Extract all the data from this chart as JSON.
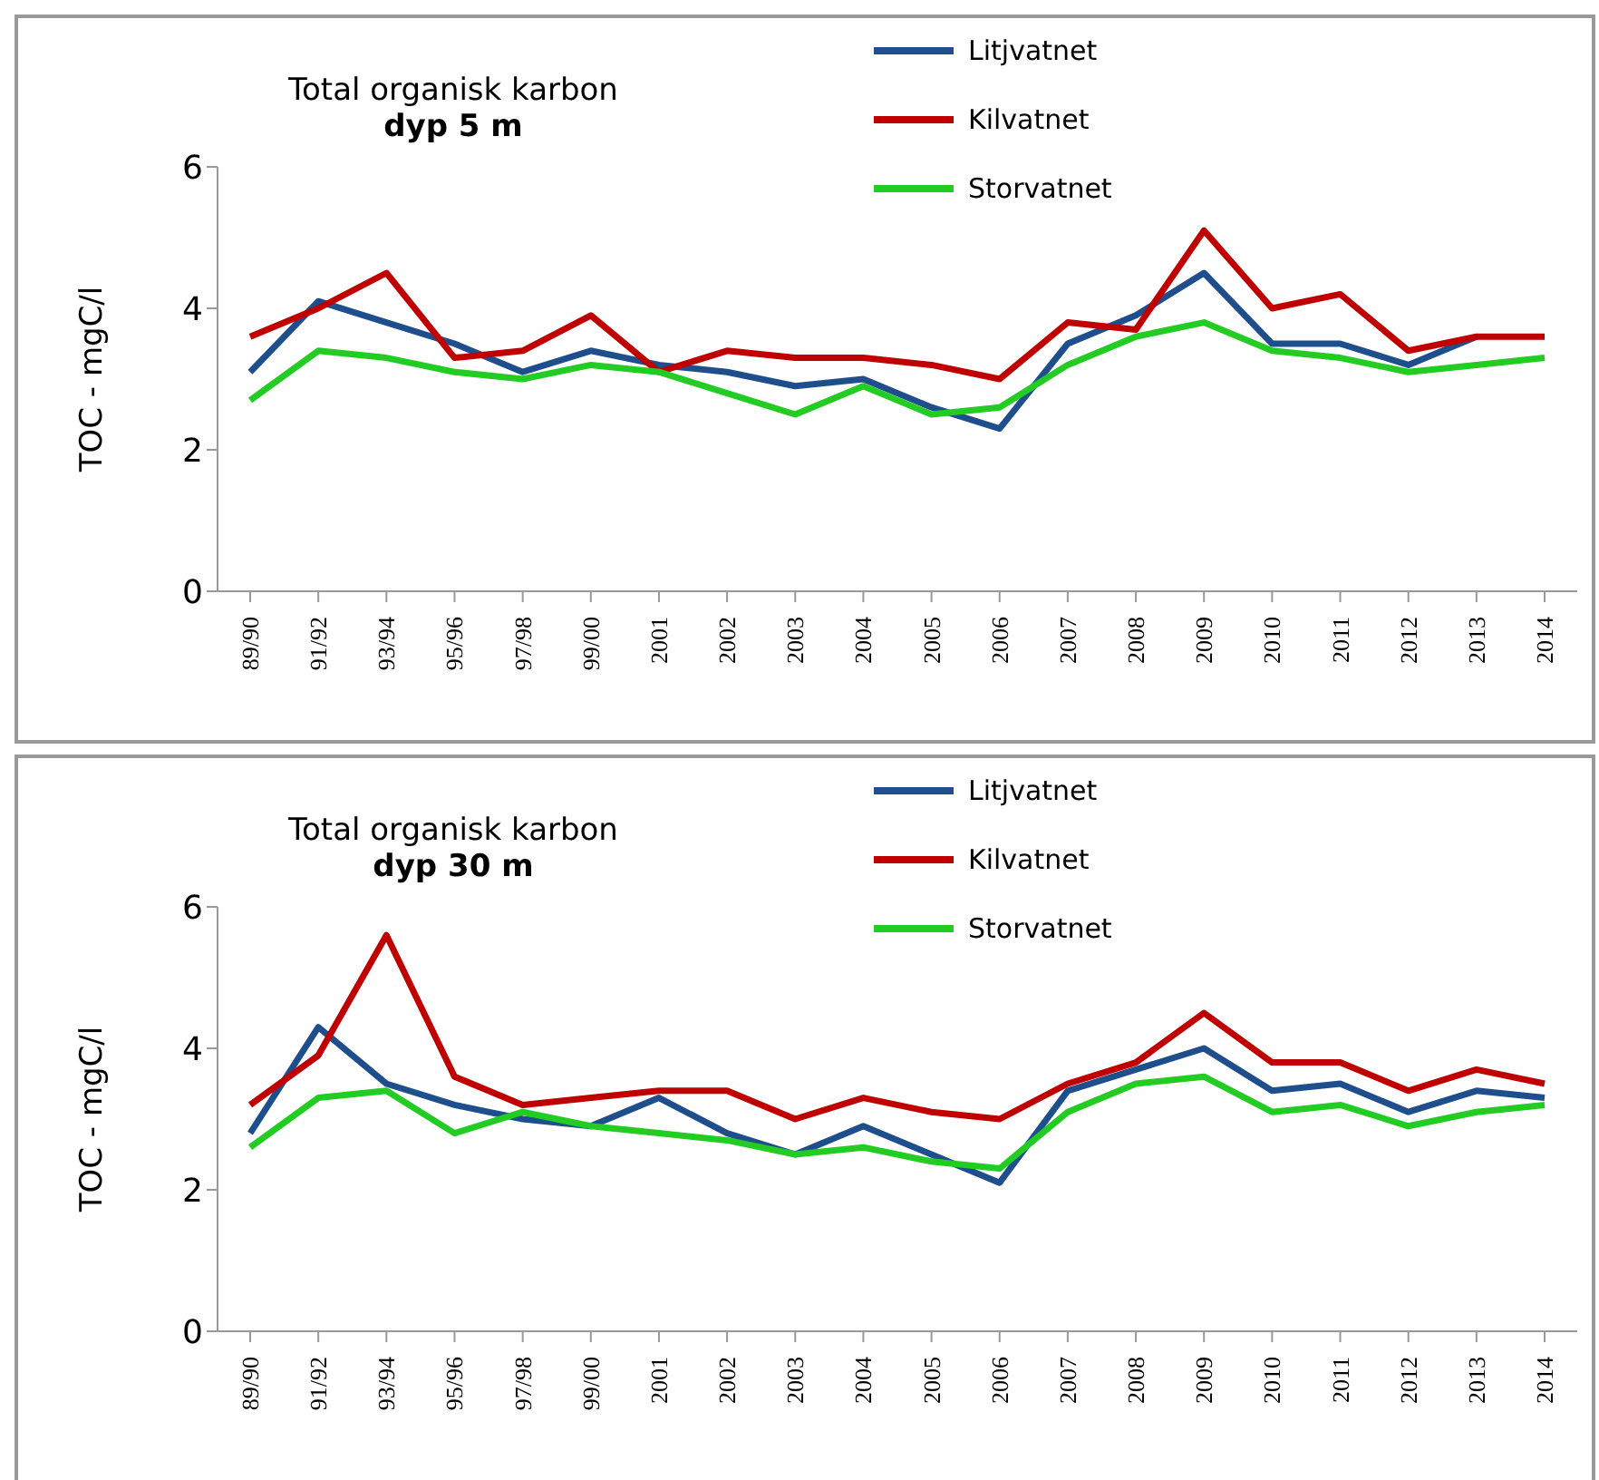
{
  "chart_data": [
    {
      "type": "line",
      "title": "Total organisk karbon",
      "subtitle": "dyp 5 m",
      "ylabel": "TOC - mgC/l",
      "categories": [
        "89/90",
        "91/92",
        "93/94",
        "95/96",
        "97/98",
        "99/00",
        "2001",
        "2002",
        "2003",
        "2004",
        "2005",
        "2006",
        "2007",
        "2008",
        "2009",
        "2010",
        "2011",
        "2012",
        "2013",
        "2014"
      ],
      "ylim": [
        0,
        6
      ],
      "yticks": [
        0,
        2,
        4,
        6
      ],
      "grid": false,
      "legend": "top",
      "marker": "none",
      "line_style": "solid",
      "series": [
        {
          "name": "Litjvatnet",
          "color": "#1f4e8c",
          "values": [
            3.1,
            4.1,
            3.8,
            3.5,
            3.1,
            3.4,
            3.2,
            3.1,
            2.9,
            3.0,
            2.6,
            2.3,
            3.5,
            3.9,
            4.5,
            3.5,
            3.5,
            3.2,
            3.6,
            null
          ]
        },
        {
          "name": "Kilvatnet",
          "color": "#c00000",
          "values": [
            3.6,
            4.0,
            4.5,
            3.3,
            3.4,
            3.9,
            3.1,
            3.4,
            3.3,
            3.3,
            3.2,
            3.0,
            3.8,
            3.7,
            5.1,
            4.0,
            4.2,
            3.4,
            3.6,
            3.6
          ]
        },
        {
          "name": "Storvatnet",
          "color": "#22cc22",
          "values": [
            2.7,
            3.4,
            3.3,
            3.1,
            3.0,
            3.2,
            3.1,
            2.8,
            2.5,
            2.9,
            2.5,
            2.6,
            3.2,
            3.6,
            3.8,
            3.4,
            3.3,
            3.1,
            3.2,
            3.3
          ]
        }
      ]
    },
    {
      "type": "line",
      "title": "Total organisk karbon",
      "subtitle": "dyp 30 m",
      "ylabel": "TOC - mgC/l",
      "categories": [
        "89/90",
        "91/92",
        "93/94",
        "95/96",
        "97/98",
        "99/00",
        "2001",
        "2002",
        "2003",
        "2004",
        "2005",
        "2006",
        "2007",
        "2008",
        "2009",
        "2010",
        "2011",
        "2012",
        "2013",
        "2014"
      ],
      "ylim": [
        0,
        6
      ],
      "yticks": [
        0,
        2,
        4,
        6
      ],
      "grid": false,
      "legend": "top",
      "marker": "none",
      "line_style": "solid",
      "series": [
        {
          "name": "Litjvatnet",
          "color": "#1f4e8c",
          "values": [
            2.8,
            4.3,
            3.5,
            3.2,
            3.0,
            2.9,
            3.3,
            2.8,
            2.5,
            2.9,
            2.5,
            2.1,
            3.4,
            3.7,
            4.0,
            3.4,
            3.5,
            3.1,
            3.4,
            3.3
          ]
        },
        {
          "name": "Kilvatnet",
          "color": "#c00000",
          "values": [
            3.2,
            3.9,
            5.6,
            3.6,
            3.2,
            3.3,
            3.4,
            3.4,
            3.0,
            3.3,
            3.1,
            3.0,
            3.5,
            3.8,
            4.5,
            3.8,
            3.8,
            3.4,
            3.7,
            3.5
          ]
        },
        {
          "name": "Storvatnet",
          "color": "#22cc22",
          "values": [
            2.6,
            3.3,
            3.4,
            2.8,
            3.1,
            2.9,
            2.8,
            2.7,
            2.5,
            2.6,
            2.4,
            2.3,
            3.1,
            3.5,
            3.6,
            3.1,
            3.2,
            2.9,
            3.1,
            3.2
          ]
        }
      ]
    }
  ]
}
